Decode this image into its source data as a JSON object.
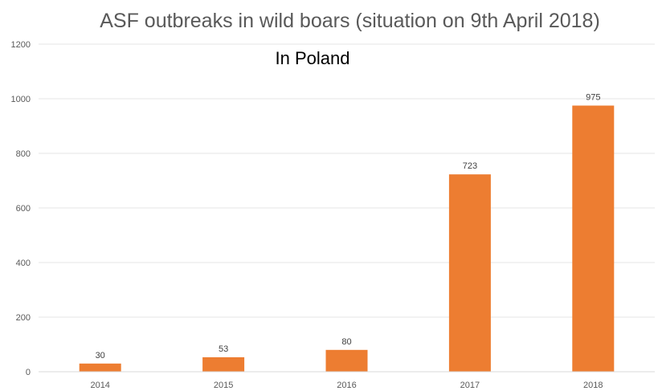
{
  "chart_data": {
    "type": "bar",
    "title": "ASF outbreaks in wild boars (situation on 9th April 2018)",
    "subtitle": "In Poland",
    "categories": [
      "2014",
      "2015",
      "2016",
      "2017",
      "2018"
    ],
    "values": [
      30,
      53,
      80,
      723,
      975
    ],
    "data_labels": [
      "30",
      "53",
      "80",
      "723",
      "975"
    ],
    "ylim": [
      0,
      1200
    ],
    "yticks": [
      0,
      200,
      400,
      600,
      800,
      1000,
      1200
    ],
    "ytick_labels": [
      "0",
      "200",
      "400",
      "600",
      "800",
      "1000",
      "1200"
    ],
    "grid": true,
    "legend": "none",
    "bar_color": "#ED7D31",
    "grid_color": "#E6E6E6"
  }
}
